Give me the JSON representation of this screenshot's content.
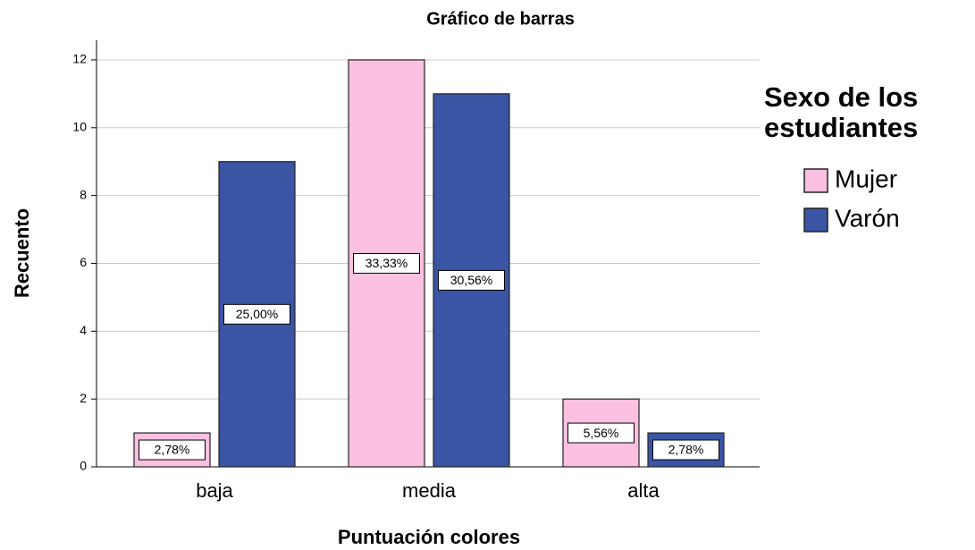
{
  "chart_data": {
    "type": "bar",
    "title": "Gráfico de barras",
    "x_label": "Puntuación colores",
    "y_label": "Recuento",
    "categories": [
      "baja",
      "media",
      "alta"
    ],
    "series": [
      {
        "name": "Mujer",
        "color": "#fcc0e0",
        "values": [
          1,
          12,
          2
        ],
        "percent_labels": [
          "2,78%",
          "33,33%",
          "5,56%"
        ]
      },
      {
        "name": "Varón",
        "color": "#3b55a5",
        "values": [
          9,
          11,
          1
        ],
        "percent_labels": [
          "25,00%",
          "30,56%",
          "2,78%"
        ]
      }
    ],
    "legend_title": "Sexo de los estudiantes",
    "ylim": [
      0,
      12.5
    ],
    "yticks": [
      0,
      2,
      4,
      6,
      8,
      10,
      12
    ],
    "grid": true,
    "legend": "right"
  }
}
